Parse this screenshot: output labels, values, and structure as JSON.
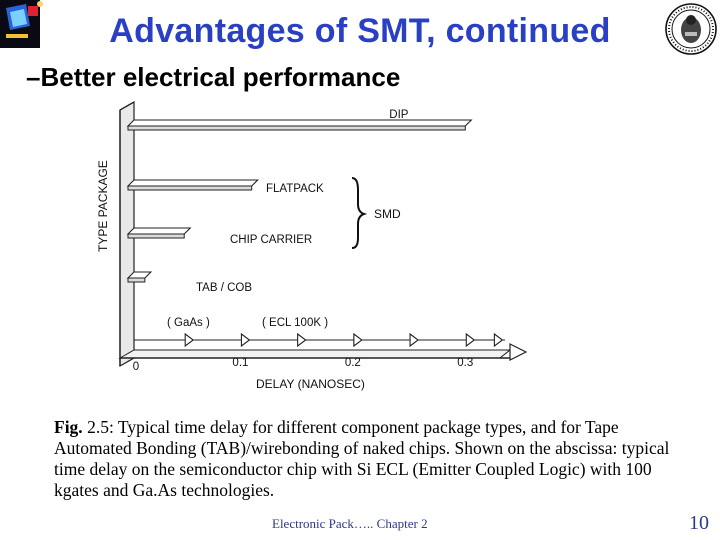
{
  "slide": {
    "title": "Advantages of SMT, continued",
    "bullet": "–Better electrical performance",
    "caption_lead": "Fig.",
    "caption_body": " 2.5: Typical time delay for different component package types, and for Tape Automated Bonding (TAB)/wirebonding of naked chips. Shown on the abscissa: typical time delay on the semiconductor chip with Si ECL (Emitter Coupled Logic) with 100 kgates and Ga.As technologies.",
    "footer": "Electronic Pack….. Chapter 2",
    "page_number": "10"
  },
  "chart_data": {
    "type": "bar",
    "orientation": "horizontal",
    "ylabel": "TYPE PACKAGE",
    "xlabel": "DELAY (NANOSEC)",
    "xlim": [
      0,
      0.33
    ],
    "x_ticks": [
      "0",
      "0.1",
      "0.2",
      "0.3"
    ],
    "x_tick_values": [
      0,
      0.1,
      0.2,
      0.3
    ],
    "categories": [
      "DIP",
      "FLATPACK",
      "CHIP CARRIER",
      "TAB / COB"
    ],
    "values": [
      0.3,
      0.11,
      0.05,
      0.015
    ],
    "brace_label": "SMD",
    "brace_groups": [
      "FLATPACK",
      "CHIP CARRIER"
    ],
    "chip_band_labels": [
      "( GaAs )",
      "( ECL 100K )"
    ],
    "chip_marker_values": [
      0.05,
      0.1,
      0.15,
      0.2,
      0.25,
      0.3,
      0.325
    ]
  }
}
